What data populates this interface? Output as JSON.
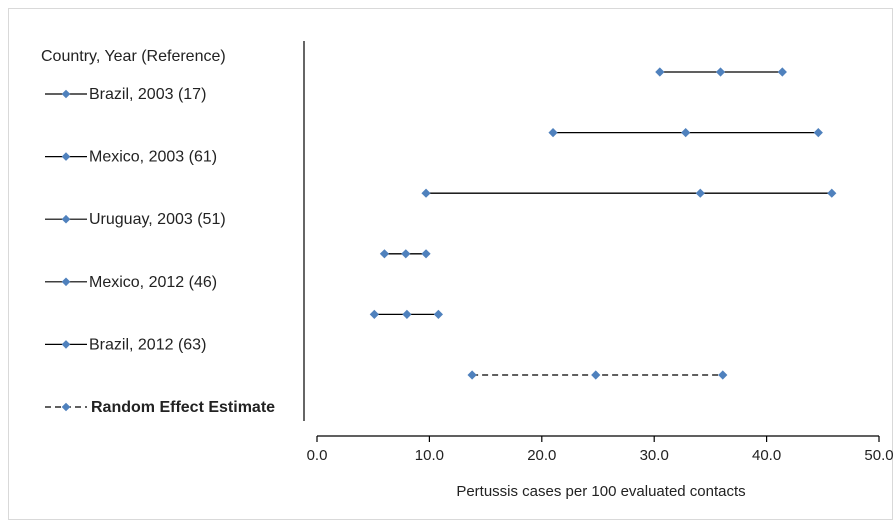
{
  "chart_data": {
    "type": "forest",
    "legend_header": "Country, Year (Reference)",
    "xlabel": "Pertussis cases per 100 evaluated contacts",
    "xlim": [
      0,
      50
    ],
    "xticks": [
      "0.0",
      "10.0",
      "20.0",
      "30.0",
      "40.0",
      "50.0"
    ],
    "series": [
      {
        "name": "Brazil, 2003 (17)",
        "low": 30.5,
        "estimate": 35.9,
        "high": 41.4,
        "style": "solid"
      },
      {
        "name": "Mexico, 2003 (61)",
        "low": 21.0,
        "estimate": 32.8,
        "high": 44.6,
        "style": "solid"
      },
      {
        "name": "Uruguay, 2003 (51)",
        "low": 9.7,
        "estimate": 34.1,
        "high": 45.8,
        "style": "solid"
      },
      {
        "name": "Mexico, 2012 (46)",
        "low": 6.0,
        "estimate": 7.9,
        "high": 9.7,
        "style": "solid"
      },
      {
        "name": "Brazil, 2012 (63)",
        "low": 5.1,
        "estimate": 8.0,
        "high": 10.8,
        "style": "solid"
      },
      {
        "name": "Random Effect Estimate",
        "low": 13.8,
        "estimate": 24.8,
        "high": 36.1,
        "style": "dashed",
        "bold": true
      }
    ],
    "colors": {
      "marker": "#4f81bd",
      "line": "#000000"
    }
  }
}
